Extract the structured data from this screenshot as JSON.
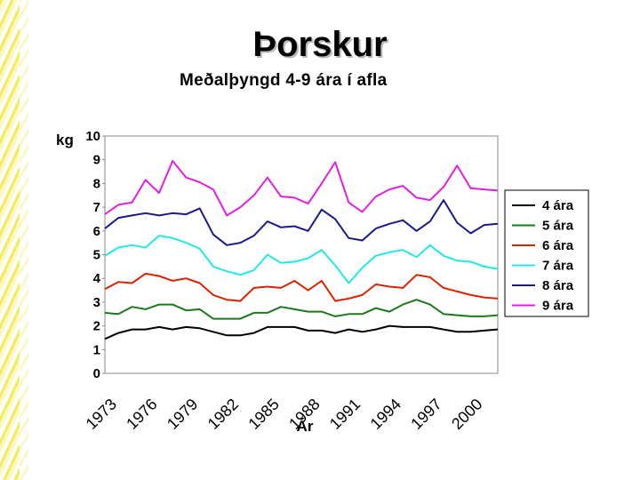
{
  "chart_data": {
    "type": "line",
    "title": "Þorskur",
    "subtitle": "Meðalþyngd 4-9 ára í afla",
    "ylabel": "kg",
    "xlabel": "Ár",
    "ylim": [
      0,
      10
    ],
    "yticks": [
      "0",
      "1",
      "2",
      "3",
      "4",
      "5",
      "6",
      "7",
      "8",
      "9",
      "10"
    ],
    "xlim": [
      1973,
      2002
    ],
    "xtick_labels": [
      "1973",
      "1976",
      "1979",
      "1982",
      "1985",
      "1988",
      "1991",
      "1994",
      "1997",
      "2000"
    ],
    "grid": false,
    "legend_position": "right",
    "x": [
      1973,
      1974,
      1975,
      1976,
      1977,
      1978,
      1979,
      1980,
      1981,
      1982,
      1983,
      1984,
      1985,
      1986,
      1987,
      1988,
      1989,
      1990,
      1991,
      1992,
      1993,
      1994,
      1995,
      1996,
      1997,
      1998,
      1999,
      2000,
      2001,
      2002
    ],
    "series": [
      {
        "name": "4 ára",
        "color": "#000000",
        "values": [
          1.45,
          1.7,
          1.85,
          1.85,
          1.95,
          1.85,
          1.95,
          1.9,
          1.75,
          1.6,
          1.6,
          1.7,
          1.95,
          1.95,
          1.95,
          1.8,
          1.8,
          1.7,
          1.85,
          1.75,
          1.85,
          2.0,
          1.95,
          1.95,
          1.95,
          1.85,
          1.75,
          1.75,
          1.8,
          1.85
        ]
      },
      {
        "name": "5 ára",
        "color": "#1a7a1a",
        "values": [
          2.55,
          2.5,
          2.8,
          2.7,
          2.9,
          2.9,
          2.65,
          2.7,
          2.3,
          2.3,
          2.3,
          2.55,
          2.55,
          2.8,
          2.7,
          2.6,
          2.6,
          2.4,
          2.5,
          2.5,
          2.75,
          2.6,
          2.9,
          3.1,
          2.9,
          2.5,
          2.45,
          2.4,
          2.4,
          2.45
        ]
      },
      {
        "name": "6 ára",
        "color": "#dd2200",
        "values": [
          3.55,
          3.85,
          3.8,
          4.2,
          4.1,
          3.9,
          4.0,
          3.8,
          3.3,
          3.1,
          3.05,
          3.6,
          3.65,
          3.6,
          3.9,
          3.5,
          3.9,
          3.05,
          3.15,
          3.3,
          3.75,
          3.65,
          3.6,
          4.15,
          4.05,
          3.6,
          3.45,
          3.3,
          3.2,
          3.15
        ]
      },
      {
        "name": "7 ára",
        "color": "#22e8e8",
        "values": [
          4.95,
          5.3,
          5.4,
          5.3,
          5.8,
          5.7,
          5.5,
          5.25,
          4.5,
          4.3,
          4.15,
          4.35,
          5.0,
          4.65,
          4.7,
          4.85,
          5.2,
          4.55,
          3.8,
          4.45,
          4.95,
          5.1,
          5.2,
          4.9,
          5.4,
          4.95,
          4.75,
          4.7,
          4.5,
          4.4
        ]
      },
      {
        "name": "8 ára",
        "color": "#1a1a8c",
        "values": [
          6.1,
          6.55,
          6.65,
          6.75,
          6.65,
          6.75,
          6.7,
          6.95,
          5.85,
          5.4,
          5.5,
          5.8,
          6.4,
          6.15,
          6.2,
          6.0,
          6.9,
          6.5,
          5.7,
          5.6,
          6.1,
          6.3,
          6.45,
          6.0,
          6.4,
          7.3,
          6.35,
          5.9,
          6.25,
          6.3
        ]
      },
      {
        "name": "9 ára",
        "color": "#e020e0",
        "values": [
          6.7,
          7.1,
          7.2,
          8.15,
          7.6,
          8.95,
          8.25,
          8.05,
          7.75,
          6.65,
          7.0,
          7.5,
          8.25,
          7.45,
          7.4,
          7.15,
          8.0,
          8.9,
          7.2,
          6.8,
          7.45,
          7.75,
          7.9,
          7.4,
          7.3,
          7.85,
          8.75,
          7.8,
          7.75,
          7.7
        ]
      }
    ]
  }
}
